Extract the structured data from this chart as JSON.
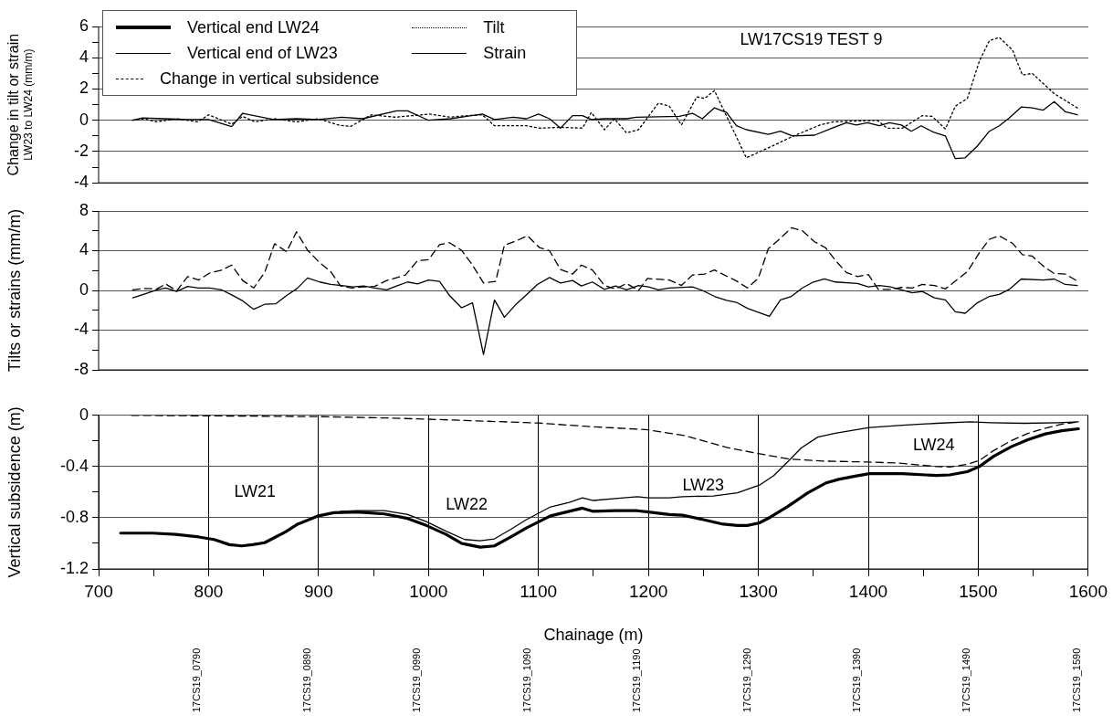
{
  "chart_data": [
    {
      "type": "line",
      "ylabel": "Change in tilt or strain\nLW23 to LW24 (mm/m)",
      "xlim": [
        700,
        1600
      ],
      "ylim": [
        -4,
        6
      ],
      "yticks": [
        -4,
        {
          "value": -3,
          "label": null
        },
        -2,
        {
          "value": -1,
          "label": null
        },
        0,
        {
          "value": 1,
          "label": null
        },
        2,
        {
          "value": 3,
          "label": null
        },
        4,
        {
          "value": 5,
          "label": null
        },
        6
      ],
      "tick_labels": "y",
      "grid": "y",
      "legend": "top left",
      "marker": "none",
      "annotations": [
        "LW17CS19 TEST 9"
      ],
      "series": [
        {
          "name": "Tilt",
          "color": "#000000",
          "line_style": "dotted",
          "x": [
            731,
            741,
            753,
            771,
            790,
            800,
            821,
            831,
            842,
            860,
            880,
            900,
            918,
            929,
            948,
            970,
            1001,
            1020,
            1035,
            1049,
            1060,
            1089,
            1101,
            1120,
            1140,
            1148,
            1160,
            1169,
            1180,
            1191,
            1209,
            1219,
            1230,
            1244,
            1251,
            1260,
            1289,
            1314,
            1332,
            1356,
            1368,
            1408,
            1417,
            1431,
            1449,
            1458,
            1470,
            1479,
            1490,
            1501,
            1510,
            1519,
            1531,
            1540,
            1549,
            1569,
            1591
          ],
          "values": [
            0,
            0.1,
            -0.1,
            0.1,
            -0.1,
            0.35,
            -0.25,
            0.25,
            -0.1,
            0.1,
            -0.1,
            0.1,
            -0.3,
            -0.4,
            0.35,
            0.2,
            0.4,
            0.2,
            0.3,
            0.35,
            -0.35,
            -0.35,
            -0.5,
            -0.45,
            -0.5,
            0.5,
            -0.6,
            0.1,
            -0.8,
            -0.6,
            1.1,
            0.9,
            -0.3,
            1.5,
            1.4,
            1.9,
            -2.4,
            -1.6,
            -1.0,
            -0.3,
            -0.1,
            0,
            -0.5,
            -0.5,
            0.3,
            0.25,
            -0.55,
            0.9,
            1.4,
            3.8,
            5.1,
            5.3,
            4.5,
            2.9,
            3.0,
            1.7,
            0.75
          ]
        },
        {
          "name": "Strain",
          "color": "#000000",
          "line_style": "solid",
          "x": [
            731,
            740,
            760,
            780,
            800,
            821,
            831,
            859,
            880,
            900,
            921,
            940,
            971,
            981,
            1000,
            1020,
            1049,
            1060,
            1077,
            1089,
            1100,
            1110,
            1120,
            1131,
            1140,
            1148,
            1160,
            1180,
            1189,
            1228,
            1240,
            1249,
            1260,
            1271,
            1280,
            1289,
            1309,
            1320,
            1331,
            1351,
            1369,
            1380,
            1389,
            1399,
            1410,
            1419,
            1430,
            1439,
            1448,
            1459,
            1470,
            1479,
            1488,
            1499,
            1510,
            1519,
            1528,
            1539,
            1549,
            1559,
            1569,
            1579,
            1590
          ],
          "values": [
            0,
            0.15,
            0.1,
            0.05,
            0.05,
            -0.4,
            0.45,
            0.05,
            0.1,
            0.05,
            0.2,
            0.1,
            0.6,
            0.6,
            0,
            0.1,
            0.4,
            0.05,
            0.2,
            0.1,
            0.4,
            0.1,
            -0.5,
            0.3,
            0.3,
            0.05,
            0.1,
            0.1,
            0.2,
            0.25,
            0.45,
            0.1,
            0.8,
            0.5,
            -0.35,
            -0.6,
            -0.9,
            -0.7,
            -1.0,
            -0.95,
            -0.45,
            -0.15,
            -0.3,
            -0.15,
            -0.35,
            -0.15,
            -0.3,
            -0.7,
            -0.35,
            -0.75,
            -1.0,
            -2.45,
            -2.4,
            -1.65,
            -0.7,
            -0.35,
            0.15,
            0.85,
            0.8,
            0.65,
            1.2,
            0.55,
            0.35
          ]
        }
      ]
    },
    {
      "type": "line",
      "ylabel": "Tilts or strains (mm/m)",
      "xlim": [
        700,
        1600
      ],
      "ylim": [
        -8,
        8
      ],
      "yticks": [
        -8,
        {
          "value": -6,
          "label": null
        },
        -4,
        {
          "value": -2,
          "label": null
        },
        0,
        {
          "value": 2,
          "label": null
        },
        4,
        {
          "value": 6,
          "label": null
        },
        8
      ],
      "tick_labels": "y",
      "grid": "y",
      "marker": "none",
      "series": [
        {
          "color": "#000000",
          "line_style": "dashed",
          "x": [
            731,
            741,
            753,
            761,
            771,
            781,
            791,
            801,
            812,
            821,
            831,
            841,
            851,
            860,
            871,
            880,
            890,
            901,
            911,
            920,
            930,
            941,
            951,
            962,
            979,
            990,
            1000,
            1010,
            1019,
            1030,
            1040,
            1050,
            1061,
            1069,
            1080,
            1090,
            1101,
            1110,
            1120,
            1131,
            1139,
            1149,
            1160,
            1170,
            1180,
            1191,
            1199,
            1219,
            1230,
            1240,
            1251,
            1260,
            1280,
            1290,
            1300,
            1309,
            1320,
            1330,
            1340,
            1351,
            1361,
            1371,
            1380,
            1390,
            1400,
            1409,
            1420,
            1430,
            1440,
            1449,
            1460,
            1470,
            1490,
            1501,
            1510,
            1519,
            1531,
            1540,
            1549,
            1559,
            1569,
            1579,
            1590
          ],
          "values": [
            0.05,
            0.2,
            0.15,
            0.65,
            -0.05,
            1.4,
            1.05,
            1.75,
            2.05,
            2.55,
            1.0,
            0.25,
            1.8,
            4.7,
            3.9,
            5.9,
            4.05,
            2.8,
            1.9,
            0.45,
            0.25,
            0.35,
            0.4,
            1.0,
            1.55,
            3.0,
            3.1,
            4.6,
            4.8,
            4.05,
            2.55,
            0.75,
            0.9,
            4.55,
            5.0,
            5.5,
            4.3,
            4.0,
            2.1,
            1.65,
            2.55,
            2.05,
            0.5,
            0.15,
            0.7,
            0,
            1.2,
            1.05,
            0.5,
            1.55,
            1.65,
            2.05,
            0.95,
            0.25,
            1.25,
            4.2,
            5.25,
            6.3,
            6.0,
            4.9,
            4.3,
            2.9,
            1.8,
            1.4,
            1.6,
            0.1,
            0.1,
            0.3,
            0.25,
            0.6,
            0.5,
            0.15,
            1.9,
            3.8,
            5.15,
            5.5,
            4.75,
            3.6,
            3.45,
            2.45,
            1.7,
            1.65,
            0.95
          ]
        },
        {
          "color": "#000000",
          "line_style": "solid",
          "x": [
            731,
            742,
            753,
            761,
            771,
            781,
            791,
            801,
            812,
            821,
            831,
            841,
            851,
            861,
            871,
            880,
            890,
            901,
            911,
            921,
            931,
            941,
            951,
            962,
            971,
            981,
            990,
            1000,
            1010,
            1019,
            1030,
            1040,
            1050,
            1060,
            1069,
            1080,
            1090,
            1099,
            1110,
            1120,
            1131,
            1139,
            1149,
            1160,
            1170,
            1180,
            1191,
            1200,
            1209,
            1219,
            1240,
            1249,
            1260,
            1271,
            1280,
            1290,
            1310,
            1320,
            1330,
            1340,
            1350,
            1360,
            1370,
            1390,
            1400,
            1410,
            1420,
            1430,
            1440,
            1449,
            1460,
            1470,
            1479,
            1488,
            1499,
            1510,
            1519,
            1528,
            1539,
            1559,
            1569,
            1579,
            1590
          ],
          "values": [
            -0.75,
            -0.35,
            0.05,
            0.25,
            -0.1,
            0.4,
            0.25,
            0.25,
            0.05,
            -0.45,
            -1.05,
            -1.9,
            -1.4,
            -1.35,
            -0.5,
            0.15,
            1.25,
            0.85,
            0.6,
            0.5,
            0.35,
            0.45,
            0.25,
            0.05,
            0.45,
            0.85,
            0.65,
            1.05,
            0.9,
            -0.5,
            -1.75,
            -1.25,
            -6.45,
            -0.95,
            -2.7,
            -1.35,
            -0.35,
            0.6,
            1.3,
            0.75,
            1.0,
            0.45,
            0.85,
            0.1,
            0.45,
            0.05,
            0.5,
            0.35,
            0.05,
            0.25,
            0.35,
            0,
            -0.6,
            -1.0,
            -1.2,
            -1.8,
            -2.6,
            -0.95,
            -0.6,
            0.25,
            0.85,
            1.15,
            0.85,
            0.7,
            0.35,
            0.5,
            0.35,
            0.05,
            -0.25,
            -0.1,
            -0.75,
            -0.95,
            -2.15,
            -2.3,
            -1.25,
            -0.6,
            -0.4,
            0.1,
            1.15,
            1.05,
            1.15,
            0.6,
            0.5
          ]
        }
      ]
    },
    {
      "type": "line",
      "xlabel": "Chainage (m)",
      "ylabel": "Vertical subsidence (m)",
      "xlim": [
        700,
        1600
      ],
      "xticks": [
        700,
        {
          "value": 750,
          "label": null
        },
        800,
        {
          "value": 850,
          "label": null
        },
        900,
        {
          "value": 950,
          "label": null
        },
        1000,
        {
          "value": 1050,
          "label": null
        },
        1100,
        {
          "value": 1150,
          "label": null
        },
        1200,
        {
          "value": 1250,
          "label": null
        },
        1300,
        {
          "value": 1350,
          "label": null
        },
        1400,
        {
          "value": 1450,
          "label": null
        },
        1500,
        {
          "value": 1550,
          "label": null
        },
        1600
      ],
      "ylim": [
        -1.2,
        0
      ],
      "yticks": [
        -1.2,
        {
          "value": -1.0,
          "label": null
        },
        -0.8,
        {
          "value": -0.6,
          "label": null
        },
        -0.4,
        {
          "value": -0.2,
          "label": null
        },
        0
      ],
      "grid": true,
      "legend": "top left",
      "marker": "none",
      "annotations": [
        "LW21",
        "LW22",
        "LW23",
        "LW24",
        "17CS19_0790",
        "17CS19_0890",
        "17CS19_0990",
        "17CS19_1090",
        "17CS19_1190",
        "17CS19_1290",
        "17CS19_1390",
        "17CS19_1490",
        "17CS19_1590"
      ],
      "series": [
        {
          "name": "Vertical end LW24",
          "color": "#000000",
          "line_style": "solid",
          "x": [
            720,
            749,
            770,
            791,
            805,
            819,
            830,
            840,
            851,
            861,
            870,
            881,
            900,
            914,
            935,
            960,
            981,
            998,
            1016,
            1030,
            1047,
            1060,
            1075,
            1089,
            1111,
            1128,
            1140,
            1150,
            1170,
            1190,
            1200,
            1219,
            1231,
            1250,
            1268,
            1281,
            1290,
            1301,
            1311,
            1327,
            1345,
            1361,
            1373,
            1388,
            1401,
            1431,
            1462,
            1474,
            1490,
            1501,
            1514,
            1530,
            1545,
            1561,
            1576,
            1591
          ],
          "values": [
            -0.92,
            -0.92,
            -0.93,
            -0.95,
            -0.97,
            -1.01,
            -1.02,
            -1.01,
            -0.995,
            -0.95,
            -0.91,
            -0.85,
            -0.785,
            -0.76,
            -0.755,
            -0.77,
            -0.805,
            -0.86,
            -0.93,
            -1.0,
            -1.03,
            -1.02,
            -0.95,
            -0.88,
            -0.785,
            -0.75,
            -0.725,
            -0.75,
            -0.745,
            -0.745,
            -0.755,
            -0.775,
            -0.78,
            -0.815,
            -0.85,
            -0.86,
            -0.86,
            -0.84,
            -0.795,
            -0.71,
            -0.605,
            -0.53,
            -0.5,
            -0.475,
            -0.455,
            -0.455,
            -0.47,
            -0.465,
            -0.44,
            -0.4,
            -0.32,
            -0.245,
            -0.19,
            -0.145,
            -0.12,
            -0.105
          ]
        },
        {
          "name": "Vertical end of LW23",
          "color": "#000000",
          "line_style": "solid",
          "x": [
            920,
            935,
            960,
            981,
            998,
            1016,
            1033,
            1047,
            1060,
            1075,
            1089,
            1111,
            1128,
            1140,
            1150,
            1170,
            1190,
            1200,
            1219,
            1231,
            1259,
            1281,
            1301,
            1314,
            1327,
            1339,
            1354,
            1370,
            1401,
            1431,
            1462,
            1493,
            1511,
            1542,
            1573,
            1591
          ],
          "values": [
            -0.75,
            -0.745,
            -0.745,
            -0.775,
            -0.83,
            -0.905,
            -0.97,
            -0.98,
            -0.965,
            -0.89,
            -0.815,
            -0.715,
            -0.68,
            -0.645,
            -0.665,
            -0.65,
            -0.635,
            -0.645,
            -0.645,
            -0.635,
            -0.63,
            -0.605,
            -0.545,
            -0.47,
            -0.36,
            -0.255,
            -0.17,
            -0.14,
            -0.095,
            -0.077,
            -0.062,
            -0.051,
            -0.057,
            -0.062,
            -0.057,
            -0.051
          ]
        },
        {
          "name": "Change in vertical subsidence",
          "color": "#000000",
          "line_style": "dashed",
          "x": [
            730,
            819,
            900,
            960,
            1000,
            1100,
            1142,
            1200,
            1234,
            1271,
            1301,
            1327,
            1358,
            1401,
            1428,
            1462,
            1474,
            1490,
            1501,
            1514,
            1530,
            1545,
            1561,
            1576,
            1591
          ],
          "values": [
            0,
            -0.005,
            -0.01,
            -0.02,
            -0.03,
            -0.06,
            -0.085,
            -0.113,
            -0.16,
            -0.25,
            -0.3,
            -0.34,
            -0.357,
            -0.365,
            -0.373,
            -0.4,
            -0.403,
            -0.383,
            -0.352,
            -0.275,
            -0.198,
            -0.141,
            -0.1,
            -0.069,
            -0.051
          ]
        }
      ]
    }
  ]
}
